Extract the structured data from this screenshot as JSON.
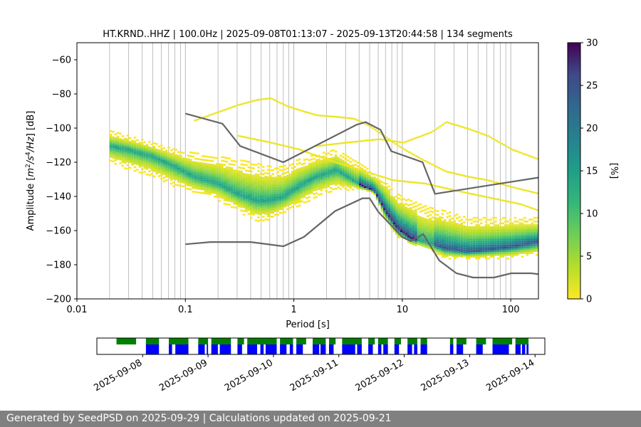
{
  "chart_data": {
    "type": "heatmap",
    "title": "HT.KRND..HHZ | 100.0Hz | 2025-09-08T01:13:07 - 2025-09-13T20:44:58 | 134 segments",
    "xlabel": "Period [s]",
    "ylabel_parts": [
      "Amplitude [",
      "m",
      "2",
      "/",
      "s",
      "4",
      "/",
      "Hz",
      "] [dB]"
    ],
    "x_scale": "log",
    "xlim": [
      0.01,
      180
    ],
    "ylim": [
      -200,
      -50
    ],
    "x_ticks": [
      0.01,
      0.1,
      1,
      10,
      100
    ],
    "x_tick_labels": [
      "0.01",
      "0.1",
      "1",
      "10",
      "100"
    ],
    "y_ticks": [
      -200,
      -180,
      -160,
      -140,
      -120,
      -100,
      -80,
      -60
    ],
    "y_tick_labels": [
      "−200",
      "−180",
      "−160",
      "−140",
      "−120",
      "−100",
      "−80",
      "−60"
    ],
    "grid": "x",
    "colorbar": {
      "label": "[%]",
      "range": [
        0,
        30
      ],
      "ticks": [
        0,
        5,
        10,
        15,
        20,
        25,
        30
      ],
      "tick_labels": [
        "0",
        "5",
        "10",
        "15",
        "20",
        "25",
        "30"
      ],
      "colormap": "viridis_r"
    },
    "density_mode": {
      "periods": [
        0.02,
        0.03,
        0.05,
        0.08,
        0.12,
        0.2,
        0.3,
        0.45,
        0.6,
        0.8,
        1.1,
        1.6,
        2.5,
        3.5,
        4.5,
        5.5,
        7,
        9,
        12,
        18,
        25,
        40,
        60,
        100,
        180
      ],
      "values": [
        -110,
        -112,
        -116,
        -122,
        -128,
        -132,
        -138,
        -142,
        -142,
        -140,
        -134,
        -128,
        -124,
        -130,
        -134,
        -136,
        -148,
        -158,
        -164,
        -167,
        -170,
        -172,
        -171,
        -169,
        -166
      ]
    },
    "density_spread": {
      "periods": [
        0.02,
        0.03,
        0.05,
        0.08,
        0.12,
        0.2,
        0.3,
        0.45,
        0.6,
        0.8,
        1.1,
        1.6,
        2.5,
        3.5,
        4.5,
        5.5,
        7,
        9,
        12,
        18,
        25,
        40,
        60,
        100,
        180
      ],
      "upper": [
        -101,
        -104,
        -108,
        -112,
        -114,
        -116,
        -118,
        -120,
        -122,
        -122,
        -118,
        -115,
        -112,
        -118,
        -122,
        -126,
        -130,
        -138,
        -142,
        -146,
        -148,
        -152,
        -152,
        -152,
        -152
      ],
      "lower": [
        -120,
        -124,
        -128,
        -134,
        -138,
        -142,
        -148,
        -154,
        -154,
        -150,
        -146,
        -140,
        -136,
        -136,
        -136,
        -138,
        -154,
        -164,
        -168,
        -172,
        -176,
        -176,
        -176,
        -176,
        -174
      ]
    },
    "sparse_high_traces": [
      {
        "periods": [
          0.12,
          0.2,
          0.3,
          0.45,
          0.6,
          0.8,
          1.1,
          1.6,
          2.5,
          3.5,
          4.5,
          6,
          9,
          15,
          25,
          40,
          60,
          100,
          180
        ],
        "values": [
          -95,
          -90,
          -86,
          -83,
          -82,
          -86,
          -89,
          -92,
          -93,
          -94,
          -97,
          -102,
          -110,
          -118,
          -125,
          -128,
          -130,
          -134,
          -138
        ]
      },
      {
        "periods": [
          1.6,
          3,
          6,
          10,
          18,
          25,
          40,
          60,
          100,
          180
        ],
        "values": [
          -110,
          -108,
          -106,
          -108,
          -102,
          -96,
          -100,
          -104,
          -112,
          -118
        ]
      },
      {
        "periods": [
          0.3,
          0.6,
          1.1,
          2,
          4,
          8,
          16,
          30,
          60,
          120,
          180
        ],
        "values": [
          -104,
          -108,
          -112,
          -118,
          -124,
          -130,
          -132,
          -136,
          -140,
          -144,
          -148
        ]
      }
    ],
    "noise_models": {
      "nhnm": {
        "periods": [
          0.1,
          0.22,
          0.32,
          0.8,
          3.8,
          4.6,
          6.3,
          7.9,
          15.4,
          20,
          354.8
        ],
        "values": [
          -91.5,
          -97.4,
          -110.5,
          -120,
          -98,
          -96.5,
          -101,
          -113.5,
          -120,
          -138.5,
          -126
        ]
      },
      "nlnm": {
        "periods": [
          0.1,
          0.17,
          0.4,
          0.8,
          1.24,
          2.4,
          4.3,
          5,
          6,
          10,
          12,
          15.6,
          21.9,
          31.6,
          45,
          70,
          101,
          154,
          328
        ],
        "values": [
          -168,
          -166.7,
          -166.7,
          -169.2,
          -163.7,
          -148.6,
          -141.1,
          -141.1,
          -149,
          -163.8,
          -166.2,
          -162.1,
          -177.5,
          -185,
          -187.5,
          -187.5,
          -185,
          -185,
          -187.5
        ]
      }
    },
    "timeline": {
      "tick_labels": [
        "2025-09-08",
        "2025-09-09",
        "2025-09-10",
        "2025-09-11",
        "2025-09-12",
        "2025-09-13",
        "2025-09-14"
      ],
      "tick_days": [
        8,
        9,
        10,
        11,
        12,
        13,
        14
      ],
      "range_days": [
        7.3,
        14.15
      ],
      "green_segments": [
        [
          7.6,
          7.9
        ],
        [
          8.05,
          8.25
        ],
        [
          8.4,
          8.7
        ],
        [
          8.85,
          9.0
        ],
        [
          9.05,
          9.35
        ],
        [
          9.45,
          9.55
        ],
        [
          9.6,
          9.75
        ],
        [
          9.75,
          10.05
        ],
        [
          10.1,
          10.3
        ],
        [
          10.35,
          10.5
        ],
        [
          10.6,
          10.8
        ],
        [
          10.85,
          10.95
        ],
        [
          11.05,
          11.35
        ],
        [
          11.45,
          11.55
        ],
        [
          11.6,
          11.75
        ],
        [
          11.85,
          11.95
        ],
        [
          12.05,
          12.2
        ],
        [
          12.25,
          12.35
        ],
        [
          12.7,
          12.75
        ],
        [
          12.8,
          12.95
        ],
        [
          13.1,
          13.25
        ],
        [
          13.35,
          13.65
        ],
        [
          13.7,
          13.9
        ]
      ],
      "blue_segments": [
        [
          8.05,
          8.25
        ],
        [
          8.4,
          8.45
        ],
        [
          8.5,
          8.7
        ],
        [
          8.85,
          8.95
        ],
        [
          8.98,
          9.0
        ],
        [
          9.05,
          9.15
        ],
        [
          9.18,
          9.35
        ],
        [
          9.45,
          9.52
        ],
        [
          9.6,
          9.75
        ],
        [
          9.8,
          9.85
        ],
        [
          9.88,
          10.05
        ],
        [
          10.1,
          10.2
        ],
        [
          10.25,
          10.3
        ],
        [
          10.35,
          10.45
        ],
        [
          10.6,
          10.7
        ],
        [
          10.72,
          10.8
        ],
        [
          10.85,
          10.92
        ],
        [
          11.05,
          11.25
        ],
        [
          11.28,
          11.35
        ],
        [
          11.45,
          11.52
        ],
        [
          11.6,
          11.65
        ],
        [
          11.68,
          11.75
        ],
        [
          11.85,
          11.92
        ],
        [
          12.05,
          12.12
        ],
        [
          12.15,
          12.2
        ],
        [
          12.25,
          12.35
        ],
        [
          12.7,
          12.75
        ],
        [
          12.8,
          12.9
        ],
        [
          13.1,
          13.2
        ],
        [
          13.35,
          13.6
        ],
        [
          13.7,
          13.78
        ],
        [
          13.8,
          13.85
        ],
        [
          13.87,
          13.9
        ]
      ]
    }
  },
  "footer": {
    "text": "Generated by SeedPSD on 2025-09-29 | Calculations updated on 2025-09-21"
  }
}
